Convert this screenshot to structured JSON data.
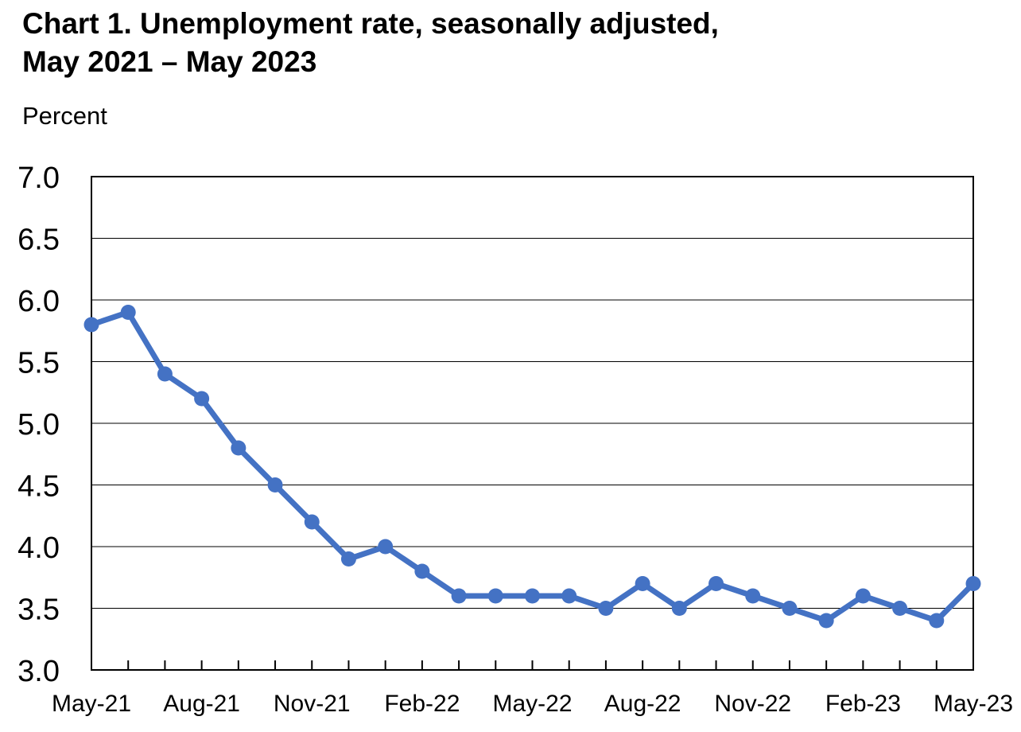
{
  "chart_data": {
    "type": "line",
    "title_line1": "Chart 1. Unemployment rate, seasonally adjusted,",
    "title_line2": "May 2021 – May 2023",
    "ylabel": "Percent",
    "xlabel": "",
    "ylim": [
      3.0,
      7.0
    ],
    "yticks": [
      "3.0",
      "3.5",
      "4.0",
      "4.5",
      "5.0",
      "5.5",
      "6.0",
      "6.5",
      "7.0"
    ],
    "x": [
      "May-21",
      "Jun-21",
      "Jul-21",
      "Aug-21",
      "Sep-21",
      "Oct-21",
      "Nov-21",
      "Dec-21",
      "Jan-22",
      "Feb-22",
      "Mar-22",
      "Apr-22",
      "May-22",
      "Jun-22",
      "Jul-22",
      "Aug-22",
      "Sep-22",
      "Oct-22",
      "Nov-22",
      "Dec-22",
      "Jan-23",
      "Feb-23",
      "Mar-23",
      "Apr-23",
      "May-23"
    ],
    "xtick_labels": [
      "May-21",
      "Aug-21",
      "Nov-21",
      "Feb-22",
      "May-22",
      "Aug-22",
      "Nov-22",
      "Feb-23",
      "May-23"
    ],
    "series": [
      {
        "values": [
          5.8,
          5.9,
          5.4,
          5.2,
          4.8,
          4.5,
          4.2,
          3.9,
          4.0,
          3.8,
          3.6,
          3.6,
          3.6,
          3.6,
          3.5,
          3.7,
          3.5,
          3.7,
          3.6,
          3.5,
          3.4,
          3.6,
          3.5,
          3.4,
          3.7
        ]
      }
    ],
    "grid": true,
    "legend": "none",
    "line_color": "#4472C4",
    "axis_color": "#000000"
  }
}
